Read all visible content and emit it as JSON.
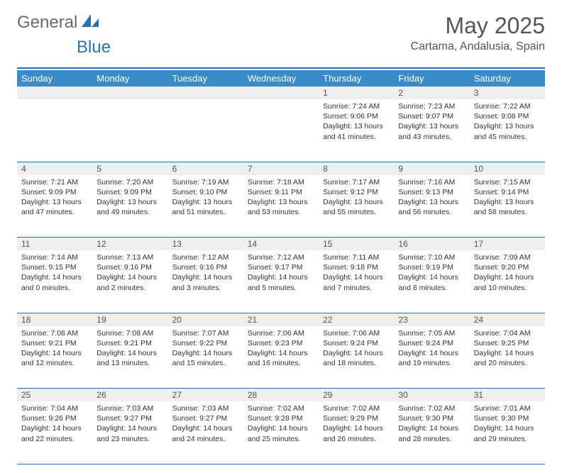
{
  "brand": {
    "general": "General",
    "blue": "Blue"
  },
  "title": "May 2025",
  "location": "Cartama, Andalusia, Spain",
  "colors": {
    "accent": "#2a72b5",
    "header_bg": "#3b8bc8",
    "header_text": "#ffffff",
    "daynum_bg": "#eeeeee",
    "text": "#333333",
    "title_text": "#555555"
  },
  "typography": {
    "title_fontsize": 32,
    "location_fontsize": 16,
    "weekday_fontsize": 13,
    "daynum_fontsize": 12,
    "body_fontsize": 10.5
  },
  "calendar": {
    "type": "table",
    "weekdays": [
      "Sunday",
      "Monday",
      "Tuesday",
      "Wednesday",
      "Thursday",
      "Friday",
      "Saturday"
    ],
    "weeks": [
      [
        null,
        null,
        null,
        null,
        {
          "n": "1",
          "sunrise": "7:24 AM",
          "sunset": "9:06 PM",
          "daylight": "13 hours and 41 minutes."
        },
        {
          "n": "2",
          "sunrise": "7:23 AM",
          "sunset": "9:07 PM",
          "daylight": "13 hours and 43 minutes."
        },
        {
          "n": "3",
          "sunrise": "7:22 AM",
          "sunset": "9:08 PM",
          "daylight": "13 hours and 45 minutes."
        }
      ],
      [
        {
          "n": "4",
          "sunrise": "7:21 AM",
          "sunset": "9:09 PM",
          "daylight": "13 hours and 47 minutes."
        },
        {
          "n": "5",
          "sunrise": "7:20 AM",
          "sunset": "9:09 PM",
          "daylight": "13 hours and 49 minutes."
        },
        {
          "n": "6",
          "sunrise": "7:19 AM",
          "sunset": "9:10 PM",
          "daylight": "13 hours and 51 minutes."
        },
        {
          "n": "7",
          "sunrise": "7:18 AM",
          "sunset": "9:11 PM",
          "daylight": "13 hours and 53 minutes."
        },
        {
          "n": "8",
          "sunrise": "7:17 AM",
          "sunset": "9:12 PM",
          "daylight": "13 hours and 55 minutes."
        },
        {
          "n": "9",
          "sunrise": "7:16 AM",
          "sunset": "9:13 PM",
          "daylight": "13 hours and 56 minutes."
        },
        {
          "n": "10",
          "sunrise": "7:15 AM",
          "sunset": "9:14 PM",
          "daylight": "13 hours and 58 minutes."
        }
      ],
      [
        {
          "n": "11",
          "sunrise": "7:14 AM",
          "sunset": "9:15 PM",
          "daylight": "14 hours and 0 minutes."
        },
        {
          "n": "12",
          "sunrise": "7:13 AM",
          "sunset": "9:16 PM",
          "daylight": "14 hours and 2 minutes."
        },
        {
          "n": "13",
          "sunrise": "7:12 AM",
          "sunset": "9:16 PM",
          "daylight": "14 hours and 3 minutes."
        },
        {
          "n": "14",
          "sunrise": "7:12 AM",
          "sunset": "9:17 PM",
          "daylight": "14 hours and 5 minutes."
        },
        {
          "n": "15",
          "sunrise": "7:11 AM",
          "sunset": "9:18 PM",
          "daylight": "14 hours and 7 minutes."
        },
        {
          "n": "16",
          "sunrise": "7:10 AM",
          "sunset": "9:19 PM",
          "daylight": "14 hours and 8 minutes."
        },
        {
          "n": "17",
          "sunrise": "7:09 AM",
          "sunset": "9:20 PM",
          "daylight": "14 hours and 10 minutes."
        }
      ],
      [
        {
          "n": "18",
          "sunrise": "7:08 AM",
          "sunset": "9:21 PM",
          "daylight": "14 hours and 12 minutes."
        },
        {
          "n": "19",
          "sunrise": "7:08 AM",
          "sunset": "9:21 PM",
          "daylight": "14 hours and 13 minutes."
        },
        {
          "n": "20",
          "sunrise": "7:07 AM",
          "sunset": "9:22 PM",
          "daylight": "14 hours and 15 minutes."
        },
        {
          "n": "21",
          "sunrise": "7:06 AM",
          "sunset": "9:23 PM",
          "daylight": "14 hours and 16 minutes."
        },
        {
          "n": "22",
          "sunrise": "7:06 AM",
          "sunset": "9:24 PM",
          "daylight": "14 hours and 18 minutes."
        },
        {
          "n": "23",
          "sunrise": "7:05 AM",
          "sunset": "9:24 PM",
          "daylight": "14 hours and 19 minutes."
        },
        {
          "n": "24",
          "sunrise": "7:04 AM",
          "sunset": "9:25 PM",
          "daylight": "14 hours and 20 minutes."
        }
      ],
      [
        {
          "n": "25",
          "sunrise": "7:04 AM",
          "sunset": "9:26 PM",
          "daylight": "14 hours and 22 minutes."
        },
        {
          "n": "26",
          "sunrise": "7:03 AM",
          "sunset": "9:27 PM",
          "daylight": "14 hours and 23 minutes."
        },
        {
          "n": "27",
          "sunrise": "7:03 AM",
          "sunset": "9:27 PM",
          "daylight": "14 hours and 24 minutes."
        },
        {
          "n": "28",
          "sunrise": "7:02 AM",
          "sunset": "9:28 PM",
          "daylight": "14 hours and 25 minutes."
        },
        {
          "n": "29",
          "sunrise": "7:02 AM",
          "sunset": "9:29 PM",
          "daylight": "14 hours and 26 minutes."
        },
        {
          "n": "30",
          "sunrise": "7:02 AM",
          "sunset": "9:30 PM",
          "daylight": "14 hours and 28 minutes."
        },
        {
          "n": "31",
          "sunrise": "7:01 AM",
          "sunset": "9:30 PM",
          "daylight": "14 hours and 29 minutes."
        }
      ]
    ],
    "labels": {
      "sunrise": "Sunrise:",
      "sunset": "Sunset:",
      "daylight": "Daylight:"
    }
  }
}
